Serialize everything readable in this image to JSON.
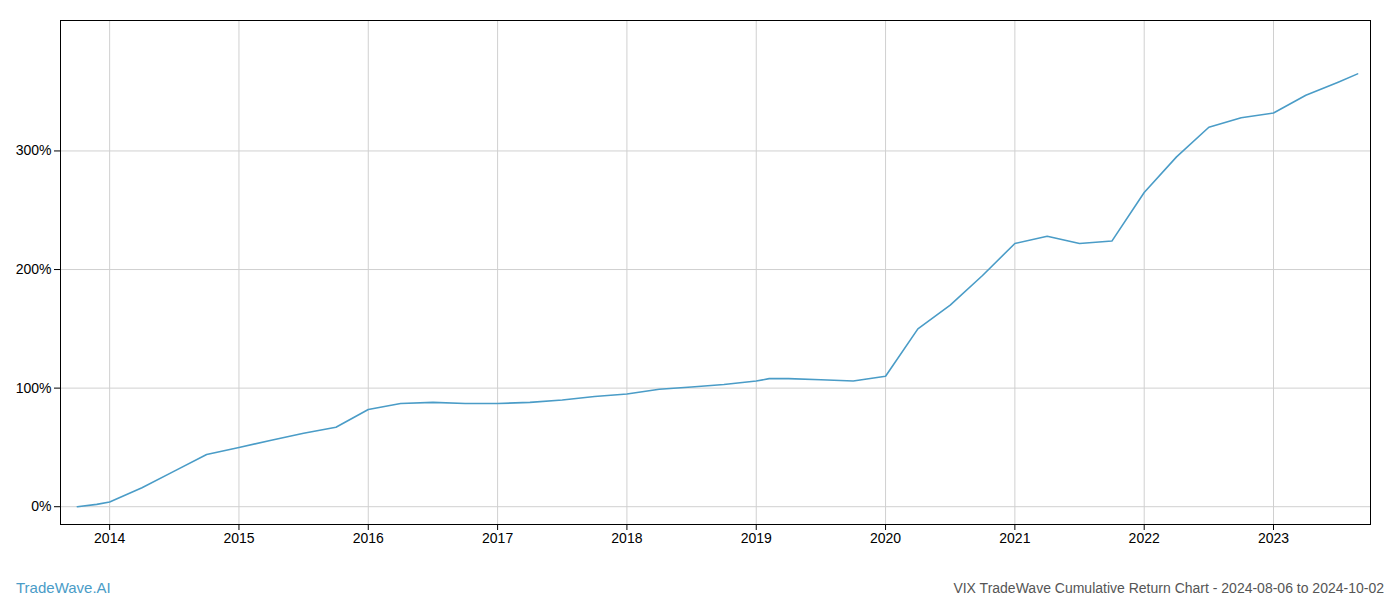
{
  "chart_data": {
    "type": "line",
    "title": "VIX TradeWave Cumulative Return Chart - 2024-08-06 to 2024-10-02",
    "annotations": [
      "TradeWave.AI"
    ],
    "color": "#4a9cc7",
    "grid": true,
    "x": [
      2013.75,
      2013.9,
      2014.0,
      2014.25,
      2014.5,
      2014.75,
      2015.0,
      2015.25,
      2015.5,
      2015.75,
      2016.0,
      2016.25,
      2016.5,
      2016.75,
      2017.0,
      2017.25,
      2017.5,
      2017.75,
      2018.0,
      2018.25,
      2018.5,
      2018.75,
      2019.0,
      2019.1,
      2019.25,
      2019.5,
      2019.75,
      2020.0,
      2020.25,
      2020.5,
      2020.75,
      2021.0,
      2021.25,
      2021.5,
      2021.75,
      2022.0,
      2022.25,
      2022.5,
      2022.75,
      2023.0,
      2023.25,
      2023.5,
      2023.65
    ],
    "values": [
      0,
      2,
      4,
      16,
      30,
      44,
      50,
      56,
      62,
      67,
      82,
      87,
      88,
      87,
      87,
      88,
      90,
      93,
      95,
      99,
      101,
      103,
      106,
      108,
      108,
      107,
      106,
      110,
      150,
      170,
      195,
      222,
      228,
      222,
      224,
      265,
      295,
      320,
      328,
      332,
      347,
      358,
      365
    ],
    "xlim": [
      2013.62,
      2023.75
    ],
    "xticks": [
      2014,
      2015,
      2016,
      2017,
      2018,
      2019,
      2020,
      2021,
      2022,
      2023
    ],
    "ylim": [
      -15,
      410
    ],
    "yticks": [
      {
        "value": 0,
        "label": "0%"
      },
      {
        "value": 100,
        "label": "100%"
      },
      {
        "value": 200,
        "label": "200%"
      },
      {
        "value": 300,
        "label": "300%"
      }
    ]
  }
}
